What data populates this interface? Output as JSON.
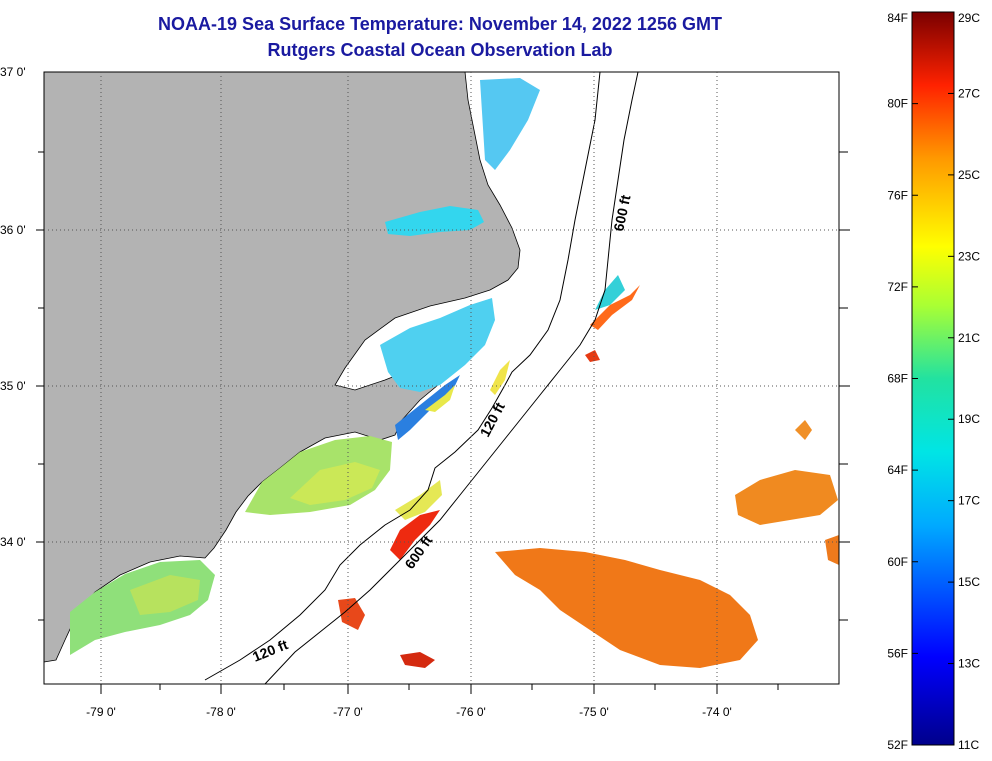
{
  "header": {
    "title": "NOAA-19 Sea Surface Temperature:  November 14, 2022 1256 GMT",
    "subtitle": "Rutgers Coastal Ocean Observation Lab"
  },
  "axes": {
    "lat_labels": [
      "37 0'",
      "36 0'",
      "35 0'",
      "34 0'"
    ],
    "lon_labels": [
      "-79 0'",
      "-78 0'",
      "-77 0'",
      "-76 0'",
      "-75 0'",
      "-74 0'"
    ]
  },
  "contours": {
    "label_600_north": "600 ft",
    "label_120_mid": "120 ft",
    "label_600_south": "600 ft",
    "label_120_south": "120 ft"
  },
  "colorbar": {
    "fahrenheit": [
      "84F",
      "80F",
      "76F",
      "72F",
      "68F",
      "64F",
      "60F",
      "56F",
      "52F"
    ],
    "celsius": [
      "29C",
      "27C",
      "25C",
      "23C",
      "21C",
      "19C",
      "17C",
      "15C",
      "13C",
      "11C"
    ]
  },
  "colors": {
    "land": "#b3b3b3",
    "title": "#1a1aa0"
  }
}
